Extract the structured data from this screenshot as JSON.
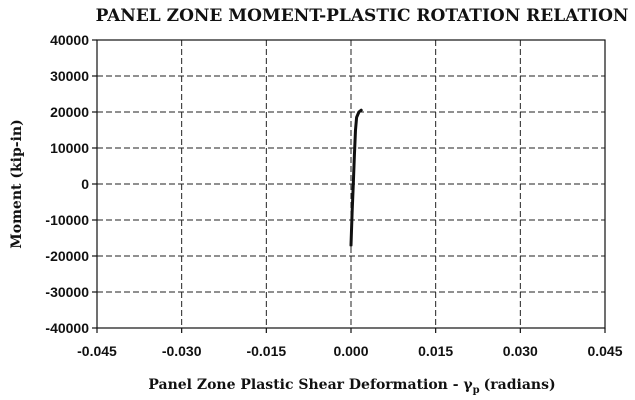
{
  "chart_data": {
    "type": "line",
    "title": "PANEL ZONE MOMENT-PLASTIC ROTATION RELATION",
    "xlabel_main": "Panel Zone Plastic Shear Deformation - γ",
    "xlabel_sub": "p",
    "xlabel_unit": "(radians)",
    "ylabel": "Moment (kip-in)",
    "xlim": [
      -0.045,
      0.045
    ],
    "ylim": [
      -40000,
      40000
    ],
    "x_ticks": [
      -0.045,
      -0.03,
      -0.015,
      0.0,
      0.015,
      0.03,
      0.045
    ],
    "x_tick_labels": [
      "-0.045",
      "-0.030",
      "-0.015",
      "0.000",
      "0.015",
      "0.030",
      "0.045"
    ],
    "y_ticks": [
      40000,
      30000,
      20000,
      10000,
      0,
      -10000,
      -20000,
      -30000,
      -40000
    ],
    "y_tick_labels": [
      "40000",
      "30000",
      "20000",
      "10000",
      "0",
      "-10000",
      "-20000",
      "-30000",
      "-40000"
    ],
    "grid": "dashed",
    "legend": "none",
    "series": [
      {
        "color": "#111111",
        "points": [
          [
            0.0,
            -17000
          ],
          [
            0.0002,
            -8000
          ],
          [
            0.0004,
            0
          ],
          [
            0.0006,
            8000
          ],
          [
            0.0008,
            15000
          ],
          [
            0.001,
            18500
          ],
          [
            0.0014,
            20000
          ],
          [
            0.0018,
            20500
          ]
        ]
      }
    ]
  }
}
